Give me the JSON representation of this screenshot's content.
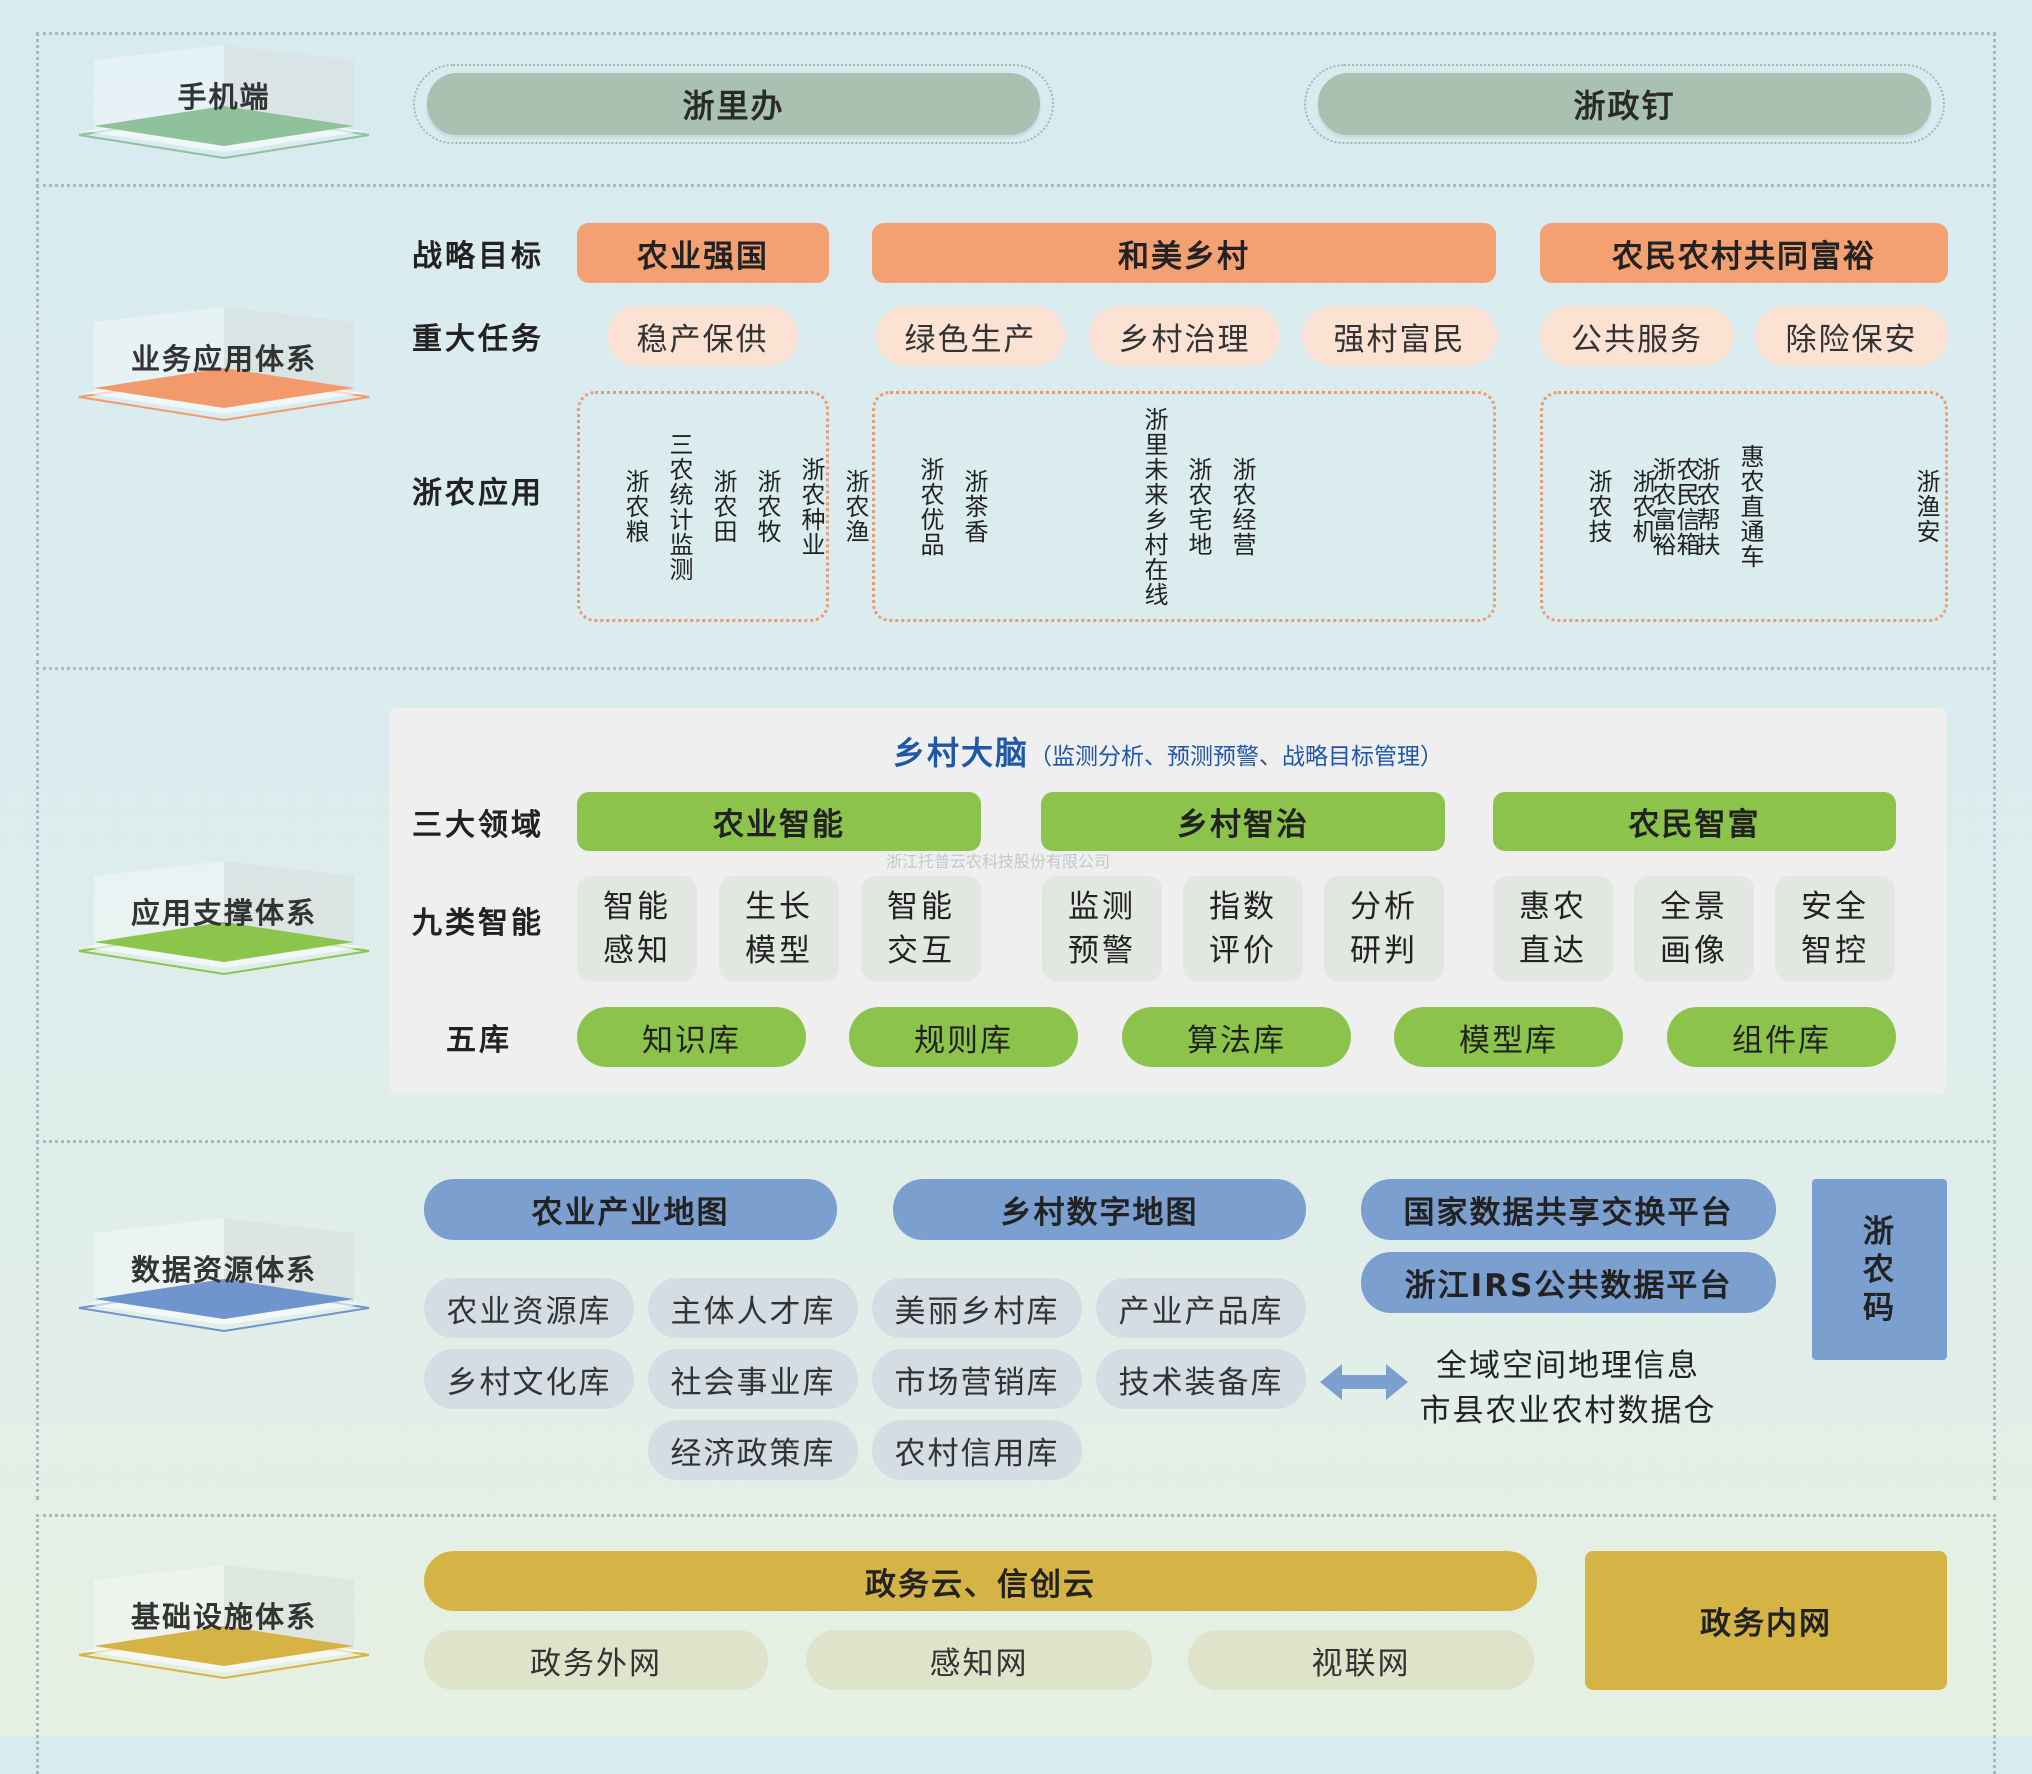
{
  "sections": {
    "mobile": {
      "label": "手机端",
      "color": "#8fc19a"
    },
    "business": {
      "label": "业务应用体系",
      "color": "#f29a6c"
    },
    "support": {
      "label": "应用支撑体系",
      "color": "#8cc54b"
    },
    "data": {
      "label": "数据资源体系",
      "color": "#6f95cc"
    },
    "infra": {
      "label": "基础设施体系",
      "color": "#d6b344"
    }
  },
  "mobile": {
    "apps": [
      "浙里办",
      "浙政钉"
    ]
  },
  "business": {
    "row_labels": {
      "goals": "战略目标",
      "tasks": "重大任务",
      "apps": "浙农应用"
    },
    "goals": [
      "农业强国",
      "和美乡村",
      "农民农村共同富裕"
    ],
    "tasks": [
      "稳产保供",
      "绿色生产",
      "乡村治理",
      "强村富民",
      "公共服务",
      "除险保安"
    ],
    "app_groups": [
      {
        "clusters": [
          [
            "浙农粮",
            "三农统计监测",
            "浙农田",
            "浙农牧",
            "浙农种业",
            "浙农渔"
          ]
        ]
      },
      {
        "clusters": [
          [
            "浙农优品",
            "浙茶香"
          ],
          [
            "浙里未来乡村在线",
            "浙农宅地",
            "浙农经营"
          ],
          [
            "浙农富裕",
            "浙农帮扶",
            "惠农直通车"
          ]
        ]
      },
      {
        "clusters": [
          [
            "浙农技",
            "浙农机",
            "农民信箱"
          ],
          [
            "浙渔安"
          ]
        ]
      }
    ]
  },
  "support": {
    "title": "乡村大脑",
    "subtitle": "（监测分析、预测预警、战略目标管理）",
    "row_labels": {
      "domains": "三大领域",
      "intel": "九类智能",
      "libs": "五库"
    },
    "domains": [
      "农业智能",
      "乡村智治",
      "农民智富"
    ],
    "intelligences": [
      "智能\n感知",
      "生长\n模型",
      "智能\n交互",
      "监测\n预警",
      "指数\n评价",
      "分析\n研判",
      "惠农\n直达",
      "全景\n画像",
      "安全\n智控"
    ],
    "libraries": [
      "知识库",
      "规则库",
      "算法库",
      "模型库",
      "组件库"
    ],
    "watermark": "浙江托普云农科技股份有限公司"
  },
  "data": {
    "maps": [
      "农业产业地图",
      "乡村数字地图"
    ],
    "platforms": [
      "国家数据共享交换平台",
      "浙江IRS公共数据平台"
    ],
    "code": "浙\n农\n码",
    "libraries": [
      "农业资源库",
      "主体人才库",
      "美丽乡村库",
      "产业产品库",
      "乡村文化库",
      "社会事业库",
      "市场营销库",
      "技术装备库",
      "经济政策库",
      "农村信用库"
    ],
    "external": [
      "全域空间地理信息",
      "市县农业农村数据仓"
    ]
  },
  "infra": {
    "cloud": "政务云、信创云",
    "networks": [
      "政务外网",
      "感知网",
      "视联网"
    ],
    "intranet": "政务内网"
  }
}
